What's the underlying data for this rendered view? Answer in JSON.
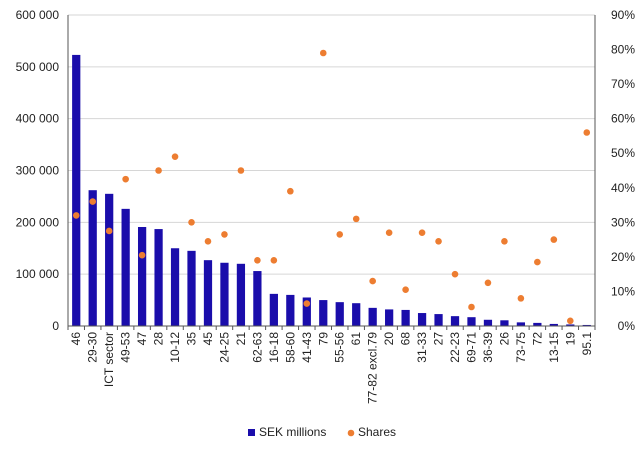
{
  "chart_data": {
    "type": "bar",
    "title": "",
    "xlabel": "",
    "ylabel": "",
    "ylim": [
      0,
      600000
    ],
    "y2lim": [
      0,
      90
    ],
    "y_ticks": [
      "0",
      "100 000",
      "200 000",
      "300 000",
      "400 000",
      "500 000",
      "600 000"
    ],
    "y2_ticks": [
      "0%",
      "10%",
      "20%",
      "30%",
      "40%",
      "50%",
      "60%",
      "70%",
      "80%",
      "90%"
    ],
    "grid": true,
    "legend_position": "bottom",
    "categories": [
      "46",
      "29-30",
      "ICT sector",
      "49-53",
      "47",
      "28",
      "10-12",
      "35",
      "45",
      "24-25",
      "21",
      "62-63",
      "16-18",
      "58-60",
      "41-43",
      "79",
      "55-56",
      "61",
      "77-82 excl.79",
      "20",
      "68",
      "31-33",
      "27",
      "22-23",
      "69-71",
      "36-39",
      "26",
      "73-75",
      "72",
      "13-15",
      "19",
      "95.1"
    ],
    "series": [
      {
        "name": "SEK millions",
        "kind": "bar",
        "axis": "left",
        "color": "#1a0dab",
        "values": [
          523000,
          262000,
          255000,
          226000,
          191000,
          187000,
          150000,
          145000,
          127000,
          122000,
          120000,
          106000,
          62000,
          60000,
          55000,
          50000,
          46000,
          44000,
          35000,
          32000,
          31000,
          25000,
          23000,
          19000,
          17000,
          12000,
          11000,
          7000,
          6000,
          4000,
          3000,
          2000
        ]
      },
      {
        "name": "Shares",
        "kind": "scatter",
        "axis": "right",
        "color": "#ed7d31",
        "values": [
          32,
          36,
          27.5,
          42.5,
          20.5,
          45,
          49,
          30,
          24.5,
          26.5,
          45,
          19,
          19,
          39,
          6.5,
          79,
          26.5,
          31,
          13,
          27,
          10.5,
          27,
          24.5,
          15,
          5.5,
          12.5,
          24.5,
          8,
          18.5,
          25,
          1.5,
          56
        ]
      }
    ]
  }
}
